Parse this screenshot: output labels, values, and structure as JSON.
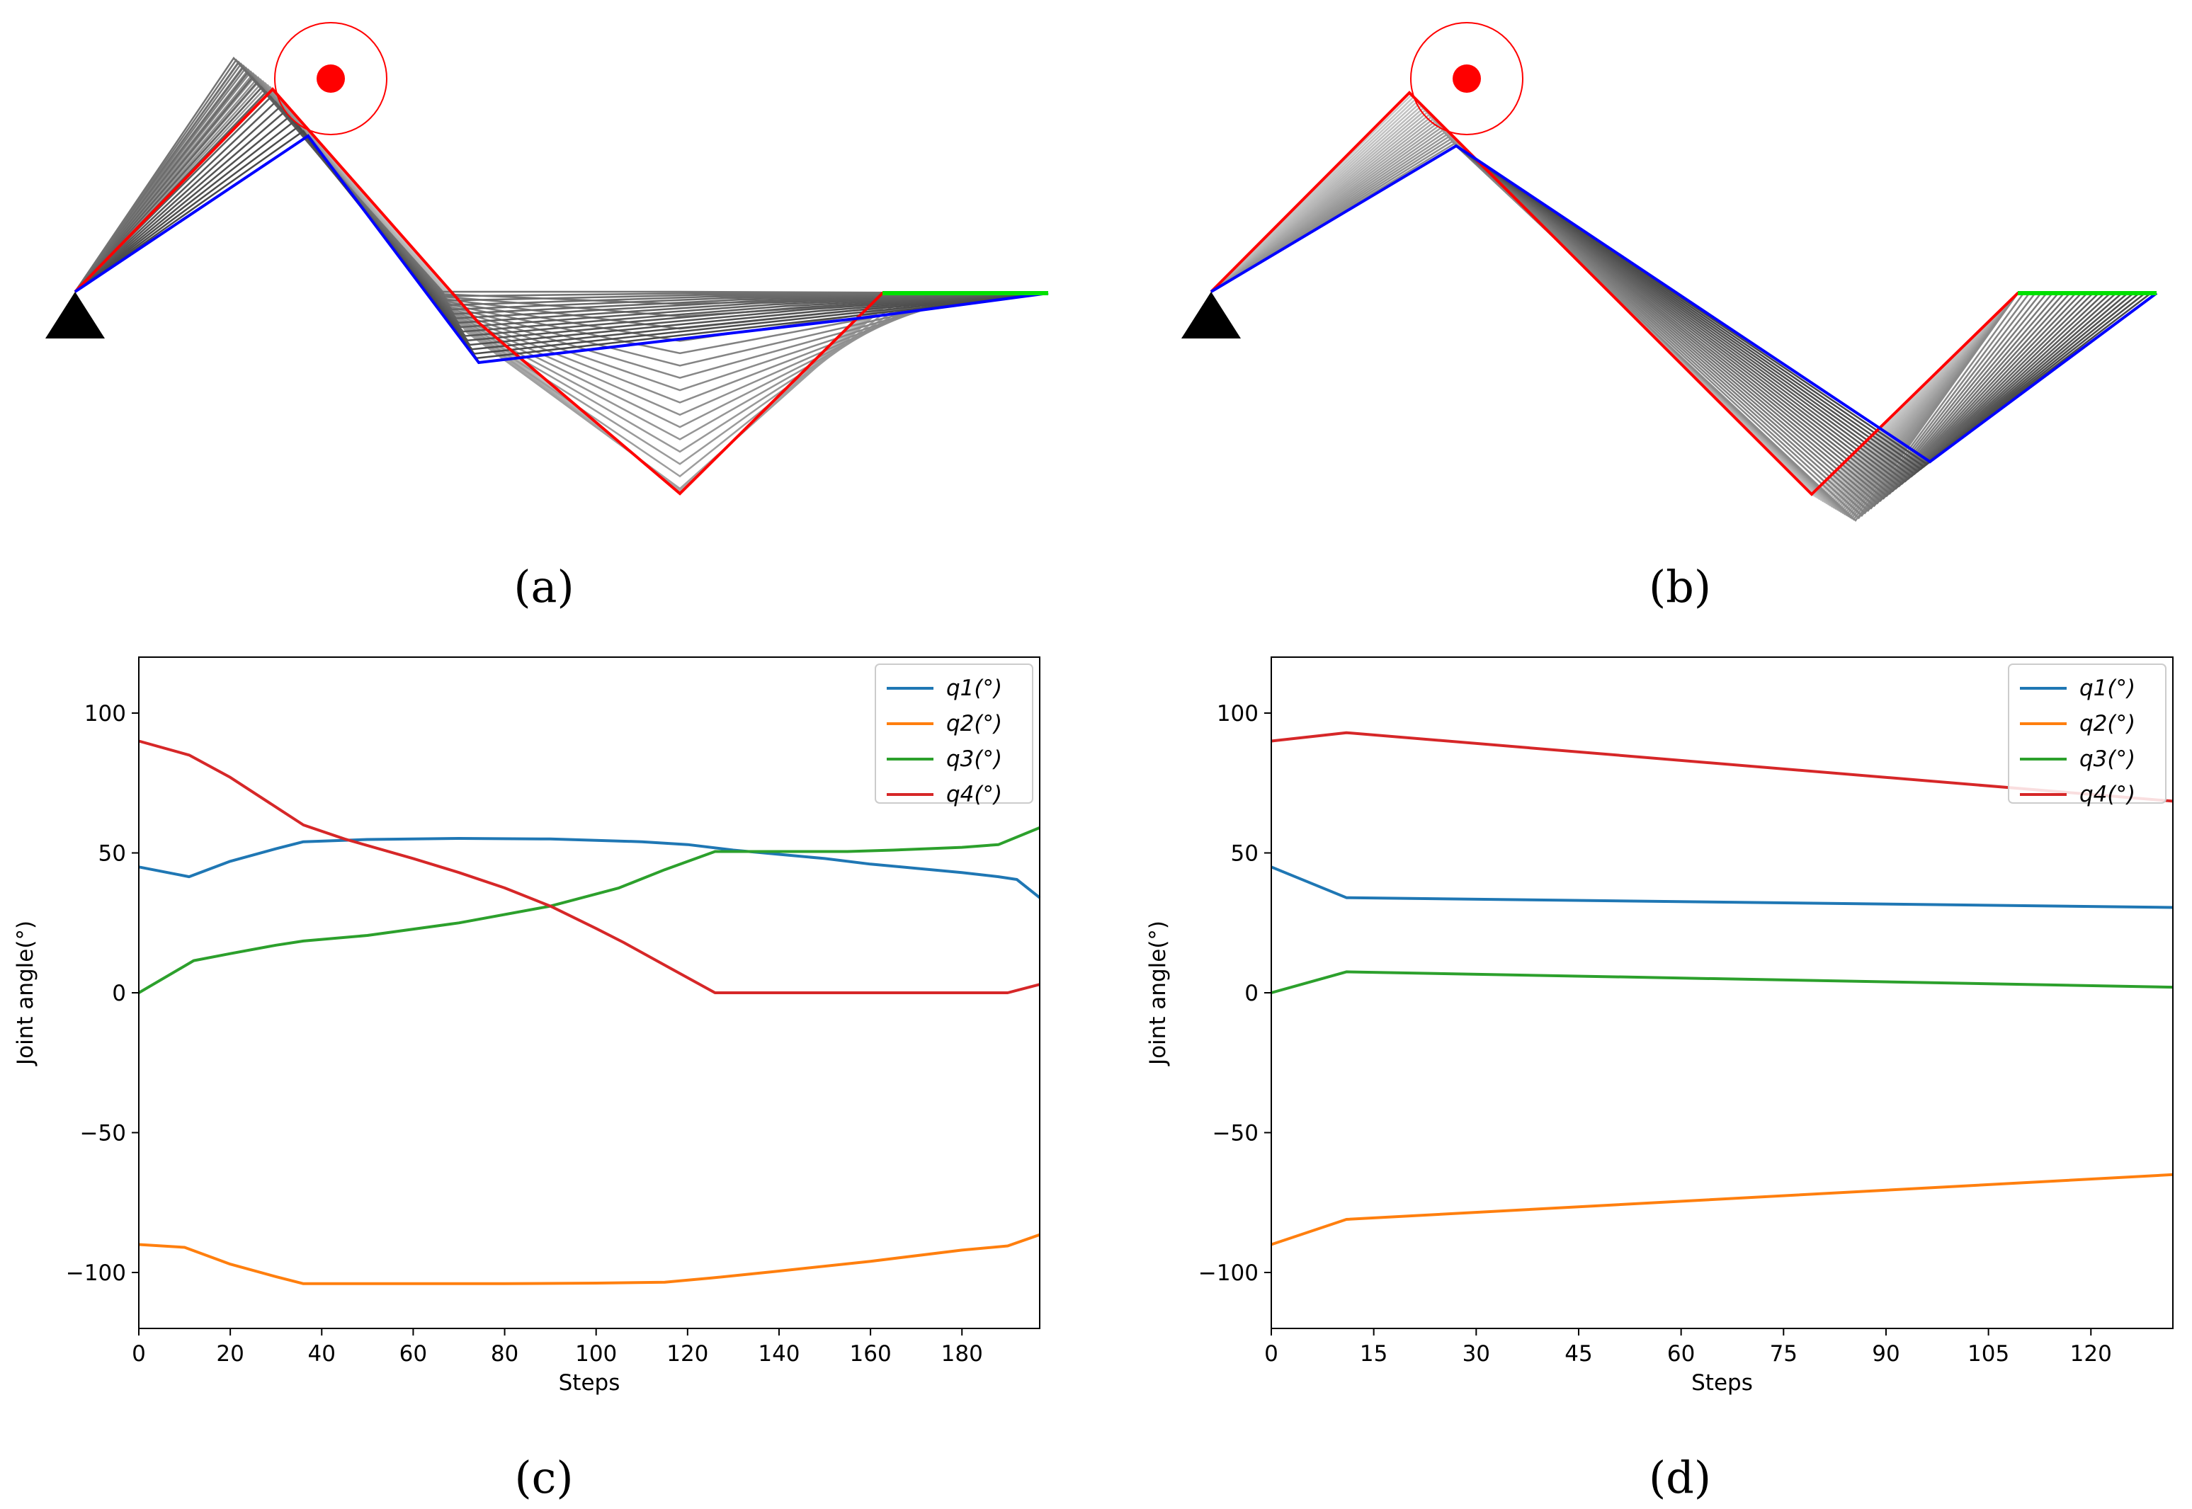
{
  "panels": {
    "a": {
      "label": "(a)"
    },
    "b": {
      "label": "(b)"
    },
    "c": {
      "label": "(c)"
    },
    "d": {
      "label": "(d)"
    }
  },
  "colors": {
    "q1": "#1f77b4",
    "q2": "#ff7f0e",
    "q3": "#2ca02c",
    "q4": "#d62728",
    "arm_start": "#ff0000",
    "arm_end": "#0000ff",
    "end_effector": "#00e000",
    "target": "#ff0000",
    "base": "#000000"
  },
  "chart_data": [
    {
      "id": "c",
      "type": "line",
      "title": "",
      "xlabel": "Steps",
      "ylabel": "Joint angle(°)",
      "xlim": [
        0,
        197
      ],
      "ylim": [
        -120,
        120
      ],
      "xticks": [
        0,
        20,
        40,
        60,
        80,
        100,
        120,
        140,
        160,
        180
      ],
      "yticks": [
        -100,
        -50,
        0,
        50,
        100
      ],
      "legend_position": "top-right",
      "series": [
        {
          "name": "q1(°)",
          "color": "#1f77b4",
          "points": [
            [
              0,
              45
            ],
            [
              11,
              41.5
            ],
            [
              20,
              47
            ],
            [
              30,
              51.5
            ],
            [
              36,
              54
            ],
            [
              50,
              54.8
            ],
            [
              70,
              55.2
            ],
            [
              90,
              55
            ],
            [
              110,
              54
            ],
            [
              120,
              53
            ],
            [
              130,
              51
            ],
            [
              140,
              49.5
            ],
            [
              150,
              48
            ],
            [
              160,
              46
            ],
            [
              170,
              44.5
            ],
            [
              180,
              43
            ],
            [
              188,
              41.5
            ],
            [
              192,
              40.5
            ],
            [
              197,
              34
            ]
          ]
        },
        {
          "name": "q2(°)",
          "color": "#ff7f0e",
          "points": [
            [
              0,
              -90
            ],
            [
              10,
              -91
            ],
            [
              20,
              -97
            ],
            [
              30,
              -101.5
            ],
            [
              36,
              -104
            ],
            [
              60,
              -104
            ],
            [
              80,
              -104
            ],
            [
              100,
              -103.8
            ],
            [
              115,
              -103.5
            ],
            [
              125,
              -102
            ],
            [
              140,
              -99.5
            ],
            [
              160,
              -96
            ],
            [
              180,
              -92
            ],
            [
              190,
              -90.5
            ],
            [
              197,
              -86.5
            ]
          ]
        },
        {
          "name": "q3(°)",
          "color": "#2ca02c",
          "points": [
            [
              0,
              0
            ],
            [
              12,
              11.5
            ],
            [
              20,
              14
            ],
            [
              30,
              17
            ],
            [
              36,
              18.5
            ],
            [
              50,
              20.5
            ],
            [
              70,
              25
            ],
            [
              90,
              31
            ],
            [
              105,
              37.5
            ],
            [
              115,
              44
            ],
            [
              126,
              50.5
            ],
            [
              140,
              50.5
            ],
            [
              155,
              50.5
            ],
            [
              165,
              51
            ],
            [
              180,
              52
            ],
            [
              188,
              53
            ],
            [
              197,
              59
            ]
          ]
        },
        {
          "name": "q4(°)",
          "color": "#d62728",
          "points": [
            [
              0,
              90
            ],
            [
              11,
              85
            ],
            [
              20,
              77
            ],
            [
              36,
              60
            ],
            [
              45,
              55
            ],
            [
              60,
              48
            ],
            [
              70,
              43
            ],
            [
              80,
              37.5
            ],
            [
              90,
              31
            ],
            [
              100,
              23
            ],
            [
              106,
              18
            ],
            [
              116,
              9
            ],
            [
              126,
              0
            ],
            [
              140,
              0
            ],
            [
              160,
              0
            ],
            [
              180,
              0
            ],
            [
              190,
              0
            ],
            [
              197,
              3
            ]
          ]
        }
      ]
    },
    {
      "id": "d",
      "type": "line",
      "title": "",
      "xlabel": "Steps",
      "ylabel": "Joint angle(°)",
      "xlim": [
        0,
        132
      ],
      "ylim": [
        -120,
        120
      ],
      "xticks": [
        0,
        15,
        30,
        45,
        60,
        75,
        90,
        105,
        120
      ],
      "yticks": [
        -100,
        -50,
        0,
        50,
        100
      ],
      "legend_position": "top-right",
      "series": [
        {
          "name": "q1(°)",
          "color": "#1f77b4",
          "points": [
            [
              0,
              45
            ],
            [
              11,
              34
            ],
            [
              132,
              30.5
            ]
          ]
        },
        {
          "name": "q2(°)",
          "color": "#ff7f0e",
          "points": [
            [
              0,
              -90
            ],
            [
              11,
              -81
            ],
            [
              132,
              -65
            ]
          ]
        },
        {
          "name": "q3(°)",
          "color": "#2ca02c",
          "points": [
            [
              0,
              0
            ],
            [
              11,
              7.5
            ],
            [
              132,
              2
            ]
          ]
        },
        {
          "name": "q4(°)",
          "color": "#d62728",
          "points": [
            [
              0,
              90
            ],
            [
              11,
              93
            ],
            [
              132,
              68.5
            ]
          ]
        }
      ]
    }
  ]
}
